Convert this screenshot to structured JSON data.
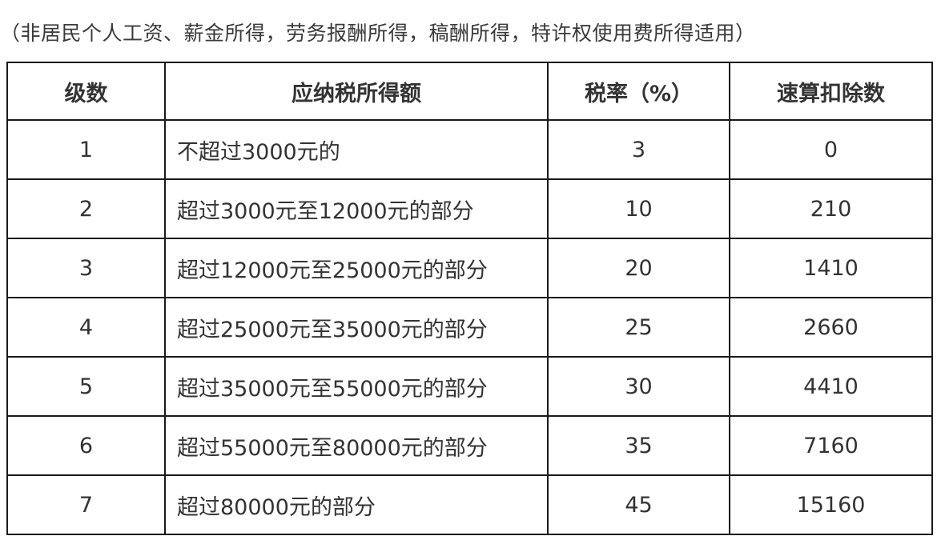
{
  "caption": "（非居民个人工资、薪金所得，劳务报酬所得，稿酬所得，特许权使用费所得适用）",
  "table": {
    "headers": [
      "级数",
      "应纳税所得额",
      "税率（%）",
      "速算扣除数"
    ],
    "rows": [
      [
        "1",
        "不超过3000元的",
        "3",
        "0"
      ],
      [
        "2",
        "超过3000元至12000元的部分",
        "10",
        "210"
      ],
      [
        "3",
        "超过12000元至25000元的部分",
        "20",
        "1410"
      ],
      [
        "4",
        "超过25000元至35000元的部分",
        "25",
        "2660"
      ],
      [
        "5",
        "超过35000元至55000元的部分",
        "30",
        "4410"
      ],
      [
        "6",
        "超过55000元至80000元的部分",
        "35",
        "7160"
      ],
      [
        "7",
        "超过80000元的部分",
        "45",
        "15160"
      ]
    ]
  }
}
